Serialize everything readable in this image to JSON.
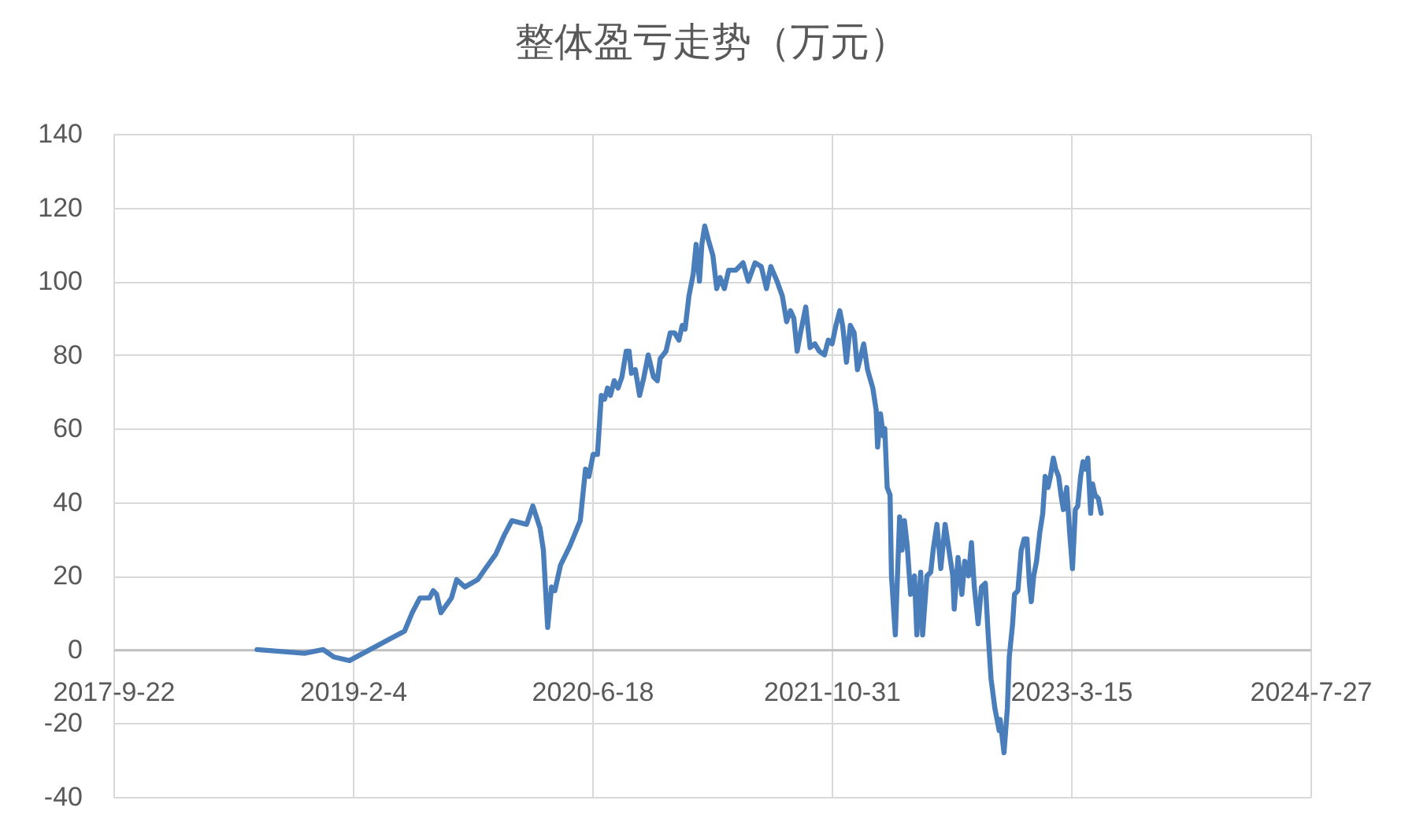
{
  "chart_data": {
    "type": "line",
    "title": "整体盈亏走势（万元）",
    "color": "#4a7ebb",
    "grid": true,
    "xlim": [
      "2017-09-22",
      "2024-07-27"
    ],
    "xticks": [
      {
        "value": "2017-09-22",
        "label": "2017-9-22"
      },
      {
        "value": "2019-02-04",
        "label": "2019-2-4"
      },
      {
        "value": "2020-06-18",
        "label": "2020-6-18"
      },
      {
        "value": "2021-10-31",
        "label": "2021-10-31"
      },
      {
        "value": "2023-03-15",
        "label": "2023-3-15"
      },
      {
        "value": "2024-07-27",
        "label": "2024-7-27"
      }
    ],
    "ylim": [
      -40,
      140
    ],
    "yticks": [
      -40,
      -20,
      0,
      20,
      40,
      60,
      80,
      100,
      120,
      140
    ],
    "x": [
      "2018-07-19",
      "2018-10-26",
      "2018-12-04",
      "2018-12-26",
      "2019-01-28",
      "2019-05-23",
      "2019-06-08",
      "2019-06-24",
      "2019-07-14",
      "2019-07-22",
      "2019-07-29",
      "2019-08-07",
      "2019-08-29",
      "2019-09-09",
      "2019-09-26",
      "2019-10-23",
      "2019-11-08",
      "2019-11-30",
      "2019-12-17",
      "2020-01-02",
      "2020-02-02",
      "2020-02-15",
      "2020-03-01",
      "2020-03-08",
      "2020-03-17",
      "2020-03-25",
      "2020-04-01",
      "2020-04-13",
      "2020-05-02",
      "2020-05-24",
      "2020-06-04",
      "2020-06-11",
      "2020-06-20",
      "2020-06-29",
      "2020-07-07",
      "2020-07-14",
      "2020-07-20",
      "2020-07-26",
      "2020-08-03",
      "2020-08-11",
      "2020-08-19",
      "2020-08-28",
      "2020-09-03",
      "2020-09-08",
      "2020-09-16",
      "2020-09-25",
      "2020-10-04",
      "2020-10-13",
      "2020-10-24",
      "2020-11-01",
      "2020-11-07",
      "2020-11-19",
      "2020-11-28",
      "2020-12-07",
      "2020-12-16",
      "2020-12-23",
      "2020-12-29",
      "2021-01-06",
      "2021-01-15",
      "2021-01-21",
      "2021-01-28",
      "2021-02-02",
      "2021-02-08",
      "2021-02-16",
      "2021-02-25",
      "2021-03-05",
      "2021-03-12",
      "2021-03-21",
      "2021-03-30",
      "2021-04-14",
      "2021-04-29",
      "2021-05-10",
      "2021-05-24",
      "2021-06-06",
      "2021-06-17",
      "2021-06-26",
      "2021-07-09",
      "2021-07-20",
      "2021-07-29",
      "2021-08-06",
      "2021-08-13",
      "2021-08-20",
      "2021-08-27",
      "2021-09-07",
      "2021-09-16",
      "2021-09-26",
      "2021-10-05",
      "2021-10-16",
      "2021-10-24",
      "2021-11-01",
      "2021-11-09",
      "2021-11-17",
      "2021-11-23",
      "2021-12-01",
      "2021-12-09",
      "2021-12-17",
      "2021-12-24",
      "2022-01-06",
      "2022-01-14",
      "2022-01-25",
      "2022-02-01",
      "2022-02-04",
      "2022-02-10",
      "2022-02-16",
      "2022-02-19",
      "2022-02-24",
      "2022-03-02",
      "2022-03-05",
      "2022-03-13",
      "2022-03-22",
      "2022-03-27",
      "2022-04-01",
      "2022-04-07",
      "2022-04-14",
      "2022-04-22",
      "2022-04-27",
      "2022-05-05",
      "2022-05-09",
      "2022-05-18",
      "2022-05-26",
      "2022-05-31",
      "2022-06-08",
      "2022-06-16",
      "2022-06-25",
      "2022-07-03",
      "2022-07-11",
      "2022-07-14",
      "2022-07-22",
      "2022-07-30",
      "2022-08-05",
      "2022-08-13",
      "2022-08-19",
      "2022-08-25",
      "2022-09-02",
      "2022-09-09",
      "2022-09-17",
      "2022-09-23",
      "2022-09-29",
      "2022-10-07",
      "2022-10-16",
      "2022-10-18",
      "2022-10-26",
      "2022-11-02",
      "2022-11-06",
      "2022-11-13",
      "2022-11-17",
      "2022-11-24",
      "2022-12-01",
      "2022-12-07",
      "2022-12-13",
      "2022-12-18",
      "2022-12-22",
      "2022-12-27",
      "2023-01-02",
      "2023-01-09",
      "2023-01-15",
      "2023-01-20",
      "2023-01-26",
      "2023-01-31",
      "2023-02-06",
      "2023-02-11",
      "2023-02-17",
      "2023-02-22",
      "2023-02-27",
      "2023-03-06",
      "2023-03-12",
      "2023-03-18",
      "2023-03-24",
      "2023-03-29",
      "2023-04-04",
      "2023-04-09",
      "2023-04-14",
      "2023-04-19",
      "2023-04-25",
      "2023-04-29",
      "2023-05-04",
      "2023-05-11",
      "2023-05-17"
    ],
    "values": [
      0,
      -1,
      0,
      -2,
      -3,
      5,
      10,
      14,
      14,
      16,
      15,
      10,
      14,
      19,
      17,
      19,
      22,
      26,
      31,
      35,
      34,
      39,
      33,
      27,
      6,
      17,
      16,
      23,
      28,
      35,
      49,
      47,
      53,
      53,
      69,
      68,
      71,
      69,
      73,
      71,
      74,
      81,
      81,
      75,
      76,
      69,
      74,
      80,
      74,
      73,
      79,
      81,
      86,
      86,
      84,
      88,
      87,
      96,
      102,
      110,
      100,
      110,
      115,
      111,
      107,
      98,
      101,
      98,
      103,
      103,
      105,
      100,
      105,
      104,
      98,
      104,
      100,
      96,
      89,
      92,
      90,
      81,
      86,
      93,
      82,
      83,
      81,
      80,
      84,
      83,
      88,
      92,
      88,
      78,
      88,
      86,
      76,
      83,
      76,
      71,
      65,
      55,
      64,
      58,
      60,
      44,
      42,
      20,
      4,
      36,
      27,
      35,
      28,
      15,
      20,
      4,
      21,
      4,
      20,
      21,
      27,
      34,
      22,
      34,
      27,
      20,
      11,
      25,
      15,
      24,
      20,
      29,
      17,
      7,
      17,
      18,
      4,
      -8,
      -16,
      -22,
      -19,
      -28,
      -16,
      -2,
      7,
      15,
      16,
      27,
      30,
      30,
      18,
      13,
      20,
      24,
      32,
      37,
      47,
      44,
      47,
      52,
      49,
      47,
      42,
      38,
      44,
      32,
      22,
      38,
      39,
      47,
      51,
      49,
      52,
      37,
      45,
      42,
      41,
      37
    ]
  }
}
